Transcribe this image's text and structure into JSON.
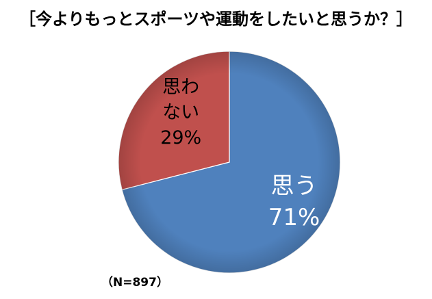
{
  "chart_data": {
    "type": "pie",
    "title": "［今よりもっとスポーツや運動をしたいと思うか？］",
    "slices": [
      {
        "label_lines": [
          "思う",
          "71%"
        ],
        "value": 71,
        "color": "#4F81BD",
        "text_color": "#ffffff"
      },
      {
        "label_lines": [
          "思わ",
          "ない",
          "29%"
        ],
        "value": 29,
        "color": "#C0504D",
        "text_color": "#000000"
      }
    ],
    "start": "12 o'clock",
    "direction": "clockwise",
    "note": "（N=897）"
  }
}
